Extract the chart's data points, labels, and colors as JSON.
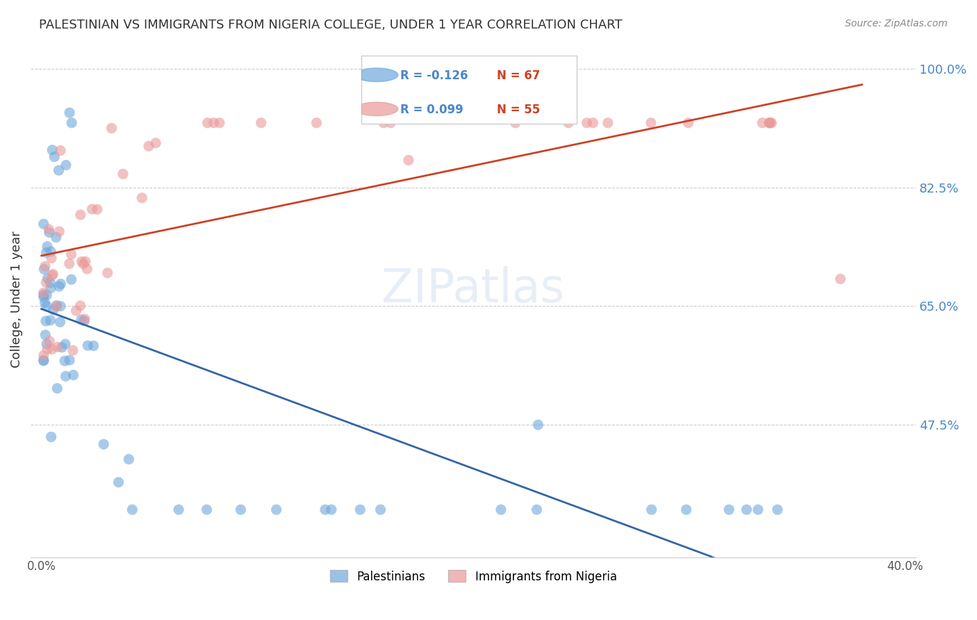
{
  "title": "PALESTINIAN VS IMMIGRANTS FROM NIGERIA COLLEGE, UNDER 1 YEAR CORRELATION CHART",
  "source": "Source: ZipAtlas.com",
  "ylabel": "College, Under 1 year",
  "xlim": [
    -0.005,
    0.405
  ],
  "ylim": [
    0.28,
    1.04
  ],
  "right_yticks": [
    1.0,
    0.825,
    0.65,
    0.475
  ],
  "right_yticklabels": [
    "100.0%",
    "82.5%",
    "65.0%",
    "47.5%"
  ],
  "xticks": [
    0.0,
    0.1,
    0.2,
    0.3,
    0.4
  ],
  "xticklabels": [
    "0.0%",
    "",
    "",
    "",
    "40.0%"
  ],
  "series1_label": "Palestinians",
  "series1_R": -0.126,
  "series1_N": 67,
  "series1_color": "#6fa8dc",
  "series1_trend_color": "#3465a4",
  "series2_label": "Immigrants from Nigeria",
  "series2_R": 0.099,
  "series2_N": 55,
  "series2_color": "#ea9999",
  "series2_trend_color": "#cc4125",
  "watermark": "ZIPatlas",
  "legend_R1": "R = -0.126",
  "legend_N1": "N = 67",
  "legend_R2": "R = 0.099",
  "legend_N2": "N = 55",
  "legend_R_color": "#4a86c8",
  "legend_N_color": "#cc4125"
}
